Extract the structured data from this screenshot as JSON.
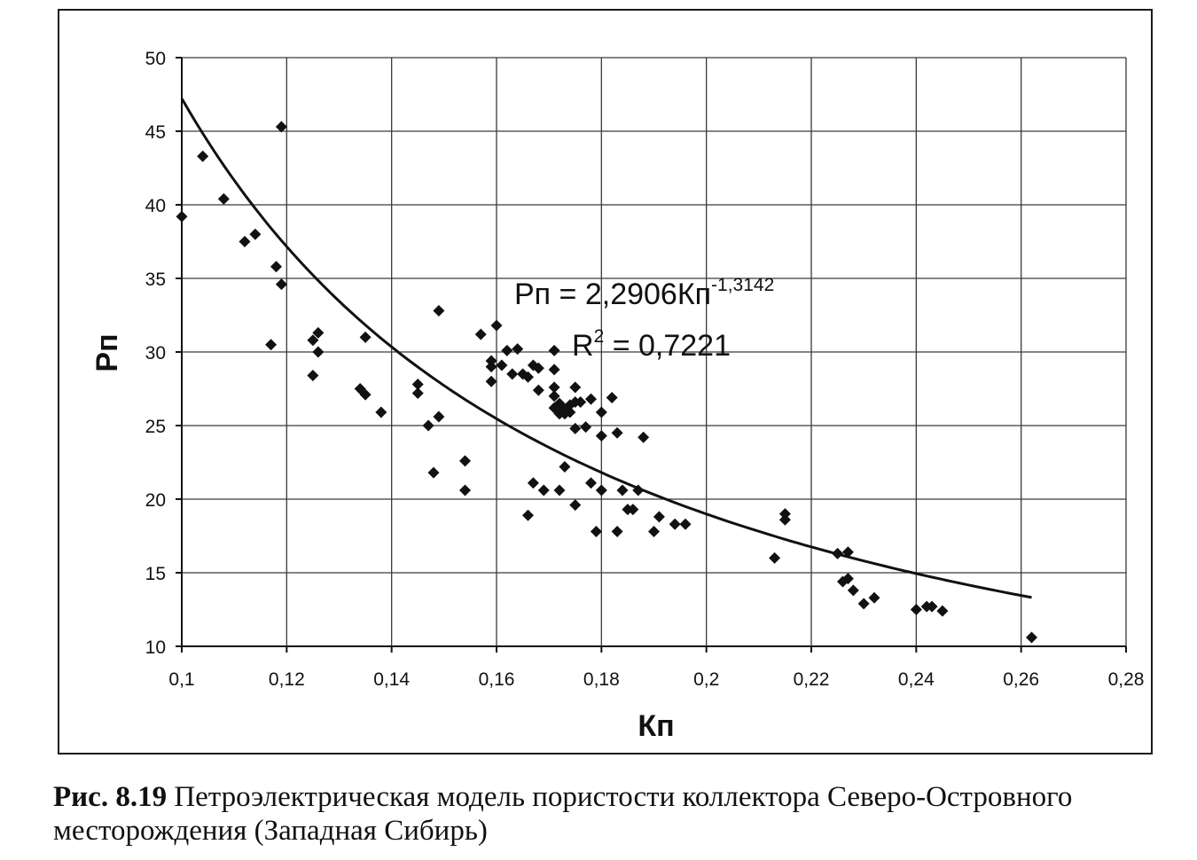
{
  "chart_data": {
    "type": "scatter",
    "xlabel": "Кп",
    "ylabel": "Рп",
    "xlim": [
      0.1,
      0.28
    ],
    "ylim": [
      10,
      50
    ],
    "x_ticks": [
      "0,1",
      "0,12",
      "0,14",
      "0,16",
      "0,18",
      "0,2",
      "0,22",
      "0,24",
      "0,26",
      "0,28"
    ],
    "x_tick_values": [
      0.1,
      0.12,
      0.14,
      0.16,
      0.18,
      0.2,
      0.22,
      0.24,
      0.26,
      0.28
    ],
    "y_ticks": [
      "10",
      "15",
      "20",
      "25",
      "30",
      "35",
      "40",
      "45",
      "50"
    ],
    "y_tick_values": [
      10,
      15,
      20,
      25,
      30,
      35,
      40,
      45,
      50
    ],
    "grid": "vertical and horizontal",
    "equation_prefix": "Рп = 2,2906Кп",
    "equation_exponent": "-1,3142",
    "r2_prefix": "R",
    "r2_exp": "2",
    "r2_value": " = 0,7221",
    "trendline": {
      "a": 2.2906,
      "b": -1.3142,
      "x_range": [
        0.1,
        0.262
      ]
    },
    "points": [
      [
        0.1,
        39.2
      ],
      [
        0.104,
        43.3
      ],
      [
        0.108,
        40.4
      ],
      [
        0.112,
        37.5
      ],
      [
        0.114,
        38.0
      ],
      [
        0.117,
        30.5
      ],
      [
        0.118,
        35.8
      ],
      [
        0.119,
        45.3
      ],
      [
        0.119,
        34.6
      ],
      [
        0.125,
        30.8
      ],
      [
        0.125,
        28.4
      ],
      [
        0.126,
        31.3
      ],
      [
        0.126,
        30.0
      ],
      [
        0.134,
        27.5
      ],
      [
        0.135,
        27.1
      ],
      [
        0.135,
        31.0
      ],
      [
        0.138,
        25.9
      ],
      [
        0.145,
        27.8
      ],
      [
        0.145,
        27.2
      ],
      [
        0.147,
        25.0
      ],
      [
        0.148,
        21.8
      ],
      [
        0.149,
        32.8
      ],
      [
        0.149,
        25.6
      ],
      [
        0.154,
        22.6
      ],
      [
        0.154,
        20.6
      ],
      [
        0.157,
        31.2
      ],
      [
        0.159,
        29.4
      ],
      [
        0.159,
        29.0
      ],
      [
        0.159,
        28.0
      ],
      [
        0.16,
        31.8
      ],
      [
        0.161,
        29.1
      ],
      [
        0.162,
        30.1
      ],
      [
        0.163,
        28.5
      ],
      [
        0.164,
        30.2
      ],
      [
        0.165,
        28.5
      ],
      [
        0.166,
        28.3
      ],
      [
        0.166,
        18.9
      ],
      [
        0.167,
        29.1
      ],
      [
        0.167,
        21.1
      ],
      [
        0.168,
        28.9
      ],
      [
        0.168,
        27.4
      ],
      [
        0.169,
        20.6
      ],
      [
        0.171,
        30.1
      ],
      [
        0.171,
        28.8
      ],
      [
        0.171,
        27.6
      ],
      [
        0.171,
        27.0
      ],
      [
        0.171,
        26.2
      ],
      [
        0.172,
        26.5
      ],
      [
        0.172,
        25.8
      ],
      [
        0.172,
        20.6
      ],
      [
        0.173,
        26.1
      ],
      [
        0.173,
        25.8
      ],
      [
        0.173,
        22.2
      ],
      [
        0.174,
        26.4
      ],
      [
        0.174,
        25.9
      ],
      [
        0.175,
        27.6
      ],
      [
        0.175,
        26.6
      ],
      [
        0.175,
        24.8
      ],
      [
        0.175,
        19.6
      ],
      [
        0.176,
        26.6
      ],
      [
        0.177,
        24.9
      ],
      [
        0.178,
        26.8
      ],
      [
        0.178,
        21.1
      ],
      [
        0.179,
        17.8
      ],
      [
        0.18,
        25.9
      ],
      [
        0.18,
        24.3
      ],
      [
        0.18,
        20.6
      ],
      [
        0.182,
        26.9
      ],
      [
        0.183,
        24.5
      ],
      [
        0.183,
        17.8
      ],
      [
        0.184,
        20.6
      ],
      [
        0.185,
        19.3
      ],
      [
        0.186,
        19.3
      ],
      [
        0.187,
        20.6
      ],
      [
        0.188,
        24.2
      ],
      [
        0.19,
        17.8
      ],
      [
        0.191,
        18.8
      ],
      [
        0.194,
        18.3
      ],
      [
        0.196,
        18.3
      ],
      [
        0.213,
        16.0
      ],
      [
        0.215,
        19.0
      ],
      [
        0.215,
        18.6
      ],
      [
        0.225,
        16.3
      ],
      [
        0.226,
        14.4
      ],
      [
        0.227,
        16.4
      ],
      [
        0.227,
        14.6
      ],
      [
        0.228,
        13.8
      ],
      [
        0.23,
        12.9
      ],
      [
        0.232,
        13.3
      ],
      [
        0.24,
        12.5
      ],
      [
        0.242,
        12.7
      ],
      [
        0.243,
        12.7
      ],
      [
        0.245,
        12.4
      ],
      [
        0.262,
        10.6
      ]
    ]
  },
  "caption": {
    "figure_number": "Рис. 8.19",
    "text": " Петроэлектрическая модель пористости коллектора Северо-Островного месторождения (Западная Сибирь)"
  },
  "colors": {
    "marker": "#111111",
    "line": "#111111",
    "grid": "#3a3a3a"
  }
}
